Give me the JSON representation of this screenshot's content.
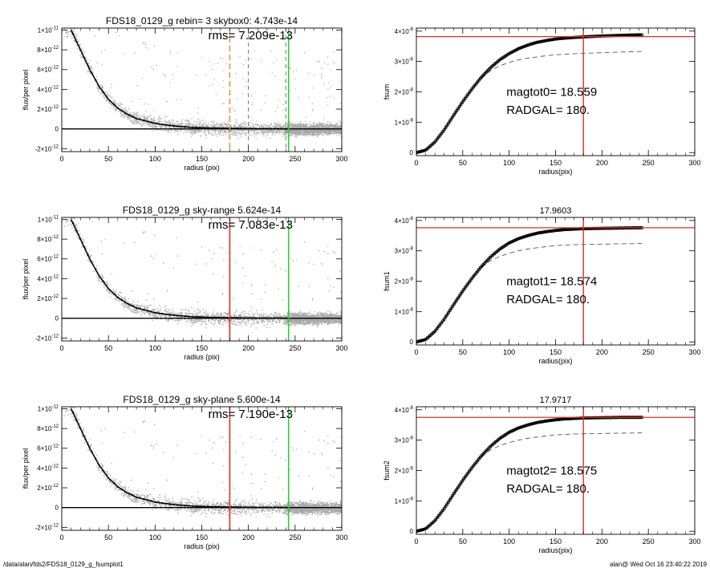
{
  "footer": {
    "left": "/data/alan/fds2/FDS18_0129_g_fsumplot1",
    "right": "alan@  Wed Oct 16 23:40:22 2019"
  },
  "colors": {
    "axis": "#000000",
    "scatter": "#a8a8a8",
    "profile": "#000000",
    "red": "#e0301e",
    "green": "#34c83a",
    "orange": "#f0923a",
    "dash": "#555555"
  },
  "chart_data": [
    {
      "kind": "profile",
      "type": "scatter",
      "title": "FDS18_0129_g rebin= 3    skybox0:  4.743e-14",
      "annotation": "rms= 7.209e-13",
      "xlabel": "radius (pix)",
      "ylabel": "flux/per pixel",
      "xlim": [
        0,
        300
      ],
      "ylim": [
        -2.3e-12,
        1.02e-11
      ],
      "xticks": [
        0,
        50,
        100,
        150,
        200,
        250,
        300
      ],
      "xticklabels": [
        "0",
        "50",
        "100",
        "150",
        "200",
        "250",
        "300"
      ],
      "yticks": [
        1e-11,
        8e-12,
        6e-12,
        4e-12,
        2e-12,
        0,
        -2e-12
      ],
      "yticklabels": [
        {
          "m": "1×10",
          "e": "-11"
        },
        {
          "m": "8×10",
          "e": "-12"
        },
        {
          "m": "6×10",
          "e": "-12"
        },
        {
          "m": "4×10",
          "e": "-12"
        },
        {
          "m": "2×10",
          "e": "-12"
        },
        {
          "m": "0",
          "e": ""
        },
        {
          "m": "-2×10",
          "e": "-12"
        }
      ],
      "profile": {
        "x": [
          10,
          20,
          30,
          40,
          50,
          60,
          70,
          80,
          90,
          100,
          120,
          140,
          160,
          180,
          200,
          240
        ],
        "y": [
          1e-11,
          8e-12,
          6e-12,
          4.3e-12,
          3e-12,
          2.1e-12,
          1.5e-12,
          1.05e-12,
          8e-13,
          5.5e-13,
          3e-13,
          1.5e-13,
          8e-14,
          5e-14,
          3e-14,
          1e-14
        ]
      },
      "zero_line": 0,
      "vlines": [
        {
          "x": 180,
          "color": "orange",
          "style": "dashed"
        },
        {
          "x": 200,
          "color": "dash",
          "style": "dashed"
        },
        {
          "x": 240,
          "color": "dash",
          "style": "dashed"
        },
        {
          "x": 243,
          "color": "green",
          "style": "solid"
        }
      ]
    },
    {
      "kind": "growth",
      "type": "line",
      "title": "",
      "xlabel": "radius(pix)",
      "ylabel": "fsum",
      "xlim": [
        0,
        300
      ],
      "ylim": [
        -1e-09,
        4.1e-08
      ],
      "xticks": [
        0,
        50,
        100,
        150,
        200,
        250,
        300
      ],
      "xticklabels": [
        "0",
        "50",
        "100",
        "150",
        "200",
        "250",
        "300"
      ],
      "yticks": [
        4e-08,
        3e-08,
        2e-08,
        1e-08,
        0
      ],
      "yticklabels": [
        {
          "m": "4×10",
          "e": "-8"
        },
        {
          "m": "3×10",
          "e": "-8"
        },
        {
          "m": "2×10",
          "e": "-8"
        },
        {
          "m": "1×10",
          "e": "-8"
        },
        {
          "m": "0",
          "e": ""
        }
      ],
      "curve": {
        "x": [
          0,
          10,
          20,
          30,
          40,
          50,
          60,
          70,
          80,
          90,
          100,
          110,
          120,
          130,
          140,
          150,
          160,
          180,
          200,
          220,
          243
        ],
        "y": [
          0,
          8e-10,
          3.5e-09,
          7.5e-09,
          1.22e-08,
          1.68e-08,
          2.1e-08,
          2.48e-08,
          2.8e-08,
          3.06e-08,
          3.26e-08,
          3.42e-08,
          3.54e-08,
          3.63e-08,
          3.69e-08,
          3.74e-08,
          3.77e-08,
          3.81e-08,
          3.84e-08,
          3.86e-08,
          3.88e-08
        ]
      },
      "dashed": {
        "x": [
          70,
          80,
          90,
          100,
          110,
          120,
          130,
          140,
          150,
          160,
          180,
          200,
          220,
          243
        ],
        "y": [
          2.46e-08,
          2.7e-08,
          2.86e-08,
          2.97e-08,
          3.05e-08,
          3.11e-08,
          3.15e-08,
          3.19e-08,
          3.22e-08,
          3.24e-08,
          3.27e-08,
          3.29e-08,
          3.31e-08,
          3.33e-08
        ]
      },
      "hline": 3.82e-08,
      "vline": 180,
      "labels": [
        {
          "name": "magtot0",
          "value": "18.559",
          "text": "magtot0=  18.559"
        },
        {
          "name": "RADGAL",
          "value": "180.",
          "text": "RADGAL=    180."
        }
      ]
    },
    {
      "kind": "profile",
      "type": "scatter",
      "title": "FDS18_0129_g sky-range  5.624e-14",
      "annotation": "rms= 7.083e-13",
      "xlabel": "radius (pix)",
      "ylabel": "flux/per pixel",
      "xlim": [
        0,
        300
      ],
      "ylim": [
        -2.3e-12,
        1.02e-11
      ],
      "xticks": [
        0,
        50,
        100,
        150,
        200,
        250,
        300
      ],
      "xticklabels": [
        "0",
        "50",
        "100",
        "150",
        "200",
        "250",
        "300"
      ],
      "yticks": [
        1e-11,
        8e-12,
        6e-12,
        4e-12,
        2e-12,
        0,
        -2e-12
      ],
      "yticklabels": [
        {
          "m": "1×10",
          "e": "-11"
        },
        {
          "m": "8×10",
          "e": "-12"
        },
        {
          "m": "6×10",
          "e": "-12"
        },
        {
          "m": "4×10",
          "e": "-12"
        },
        {
          "m": "2×10",
          "e": "-12"
        },
        {
          "m": "0",
          "e": ""
        },
        {
          "m": "-2×10",
          "e": "-12"
        }
      ],
      "profile": {
        "x": [
          10,
          20,
          30,
          40,
          50,
          60,
          70,
          80,
          90,
          100,
          120,
          140,
          160,
          180,
          200,
          240
        ],
        "y": [
          1e-11,
          8e-12,
          6e-12,
          4.3e-12,
          3e-12,
          2.1e-12,
          1.5e-12,
          1.05e-12,
          8e-13,
          5.5e-13,
          3e-13,
          1.5e-13,
          8e-14,
          5e-14,
          3e-14,
          1e-14
        ]
      },
      "zero_line": 0,
      "vlines": [
        {
          "x": 180,
          "color": "red",
          "style": "solid"
        },
        {
          "x": 243,
          "color": "green",
          "style": "solid"
        }
      ]
    },
    {
      "kind": "growth",
      "type": "line",
      "title": "17.9603",
      "xlabel": "radius(pix)",
      "ylabel": "fsum1",
      "xlim": [
        0,
        300
      ],
      "ylim": [
        -1e-09,
        4.1e-08
      ],
      "xticks": [
        0,
        50,
        100,
        150,
        200,
        250,
        300
      ],
      "xticklabels": [
        "0",
        "50",
        "100",
        "150",
        "200",
        "250",
        "300"
      ],
      "yticks": [
        4e-08,
        3e-08,
        2e-08,
        1e-08,
        0
      ],
      "yticklabels": [
        {
          "m": "4×10",
          "e": "-8"
        },
        {
          "m": "3×10",
          "e": "-8"
        },
        {
          "m": "2×10",
          "e": "-8"
        },
        {
          "m": "1×10",
          "e": "-8"
        },
        {
          "m": "0",
          "e": ""
        }
      ],
      "curve": {
        "x": [
          0,
          10,
          20,
          30,
          40,
          50,
          60,
          70,
          80,
          90,
          100,
          110,
          120,
          130,
          140,
          150,
          160,
          180,
          200,
          220,
          243
        ],
        "y": [
          0,
          8e-10,
          3.5e-09,
          7.5e-09,
          1.22e-08,
          1.68e-08,
          2.1e-08,
          2.48e-08,
          2.8e-08,
          3.06e-08,
          3.26e-08,
          3.4e-08,
          3.5e-08,
          3.58e-08,
          3.63e-08,
          3.67e-08,
          3.7e-08,
          3.73e-08,
          3.74e-08,
          3.75e-08,
          3.76e-08
        ]
      },
      "dashed": {
        "x": [
          70,
          80,
          90,
          100,
          110,
          120,
          130,
          140,
          150,
          160,
          180,
          200,
          220,
          243
        ],
        "y": [
          2.46e-08,
          2.68e-08,
          2.82e-08,
          2.92e-08,
          3e-08,
          3.06e-08,
          3.1e-08,
          3.14e-08,
          3.17e-08,
          3.19e-08,
          3.21e-08,
          3.22e-08,
          3.23e-08,
          3.24e-08
        ]
      },
      "hline": 3.76e-08,
      "vline": 180,
      "labels": [
        {
          "name": "magtot1",
          "value": "18.574",
          "text": "magtot1=  18.574"
        },
        {
          "name": "RADGAL",
          "value": "180.",
          "text": "RADGAL=    180."
        }
      ]
    },
    {
      "kind": "profile",
      "type": "scatter",
      "title": "FDS18_0129_g sky-plane  5.600e-14",
      "annotation": "rms= 7.190e-13",
      "xlabel": "radius (pix)",
      "ylabel": "flux/per pixel",
      "xlim": [
        0,
        300
      ],
      "ylim": [
        -2.3e-12,
        1.02e-11
      ],
      "xticks": [
        0,
        50,
        100,
        150,
        200,
        250,
        300
      ],
      "xticklabels": [
        "0",
        "50",
        "100",
        "150",
        "200",
        "250",
        "300"
      ],
      "yticks": [
        1e-11,
        8e-12,
        6e-12,
        4e-12,
        2e-12,
        0,
        -2e-12
      ],
      "yticklabels": [
        {
          "m": "1×10",
          "e": "-11"
        },
        {
          "m": "8×10",
          "e": "-12"
        },
        {
          "m": "6×10",
          "e": "-12"
        },
        {
          "m": "4×10",
          "e": "-12"
        },
        {
          "m": "2×10",
          "e": "-12"
        },
        {
          "m": "0",
          "e": ""
        },
        {
          "m": "-2×10",
          "e": "-12"
        }
      ],
      "profile": {
        "x": [
          10,
          20,
          30,
          40,
          50,
          60,
          70,
          80,
          90,
          100,
          120,
          140,
          160,
          180,
          200,
          240
        ],
        "y": [
          1e-11,
          8e-12,
          6e-12,
          4.3e-12,
          3e-12,
          2.1e-12,
          1.5e-12,
          1.05e-12,
          8e-13,
          5.5e-13,
          3e-13,
          1.5e-13,
          8e-14,
          5e-14,
          3e-14,
          1e-14
        ]
      },
      "zero_line": 0,
      "vlines": [
        {
          "x": 180,
          "color": "red",
          "style": "solid"
        },
        {
          "x": 243,
          "color": "green",
          "style": "solid"
        }
      ]
    },
    {
      "kind": "growth",
      "type": "line",
      "title": "17.9717",
      "xlabel": "radius(pix)",
      "ylabel": "fsum2",
      "xlim": [
        0,
        300
      ],
      "ylim": [
        -1e-09,
        4.1e-08
      ],
      "xticks": [
        0,
        50,
        100,
        150,
        200,
        250,
        300
      ],
      "xticklabels": [
        "0",
        "50",
        "100",
        "150",
        "200",
        "250",
        "300"
      ],
      "yticks": [
        4e-08,
        3e-08,
        2e-08,
        1e-08,
        0
      ],
      "yticklabels": [
        {
          "m": "4×10",
          "e": "-8"
        },
        {
          "m": "3×10",
          "e": "-8"
        },
        {
          "m": "2×10",
          "e": "-8"
        },
        {
          "m": "1×10",
          "e": "-8"
        },
        {
          "m": "0",
          "e": ""
        }
      ],
      "curve": {
        "x": [
          0,
          10,
          20,
          30,
          40,
          50,
          60,
          70,
          80,
          90,
          100,
          110,
          120,
          130,
          140,
          150,
          160,
          180,
          200,
          220,
          243
        ],
        "y": [
          0,
          8e-10,
          3.5e-09,
          7.5e-09,
          1.22e-08,
          1.68e-08,
          2.1e-08,
          2.48e-08,
          2.8e-08,
          3.06e-08,
          3.26e-08,
          3.4e-08,
          3.5e-08,
          3.58e-08,
          3.63e-08,
          3.67e-08,
          3.7e-08,
          3.73e-08,
          3.74e-08,
          3.75e-08,
          3.75e-08
        ]
      },
      "dashed": {
        "x": [
          70,
          80,
          90,
          100,
          110,
          120,
          130,
          140,
          150,
          160,
          180,
          200,
          220,
          243
        ],
        "y": [
          2.46e-08,
          2.68e-08,
          2.82e-08,
          2.92e-08,
          3e-08,
          3.06e-08,
          3.1e-08,
          3.14e-08,
          3.17e-08,
          3.19e-08,
          3.21e-08,
          3.22e-08,
          3.23e-08,
          3.24e-08
        ]
      },
      "hline": 3.75e-08,
      "vline": 180,
      "labels": [
        {
          "name": "magtot2",
          "value": "18.575",
          "text": "magtot2=  18.575"
        },
        {
          "name": "RADGAL",
          "value": "180.",
          "text": "RADGAL=    180."
        }
      ]
    }
  ]
}
